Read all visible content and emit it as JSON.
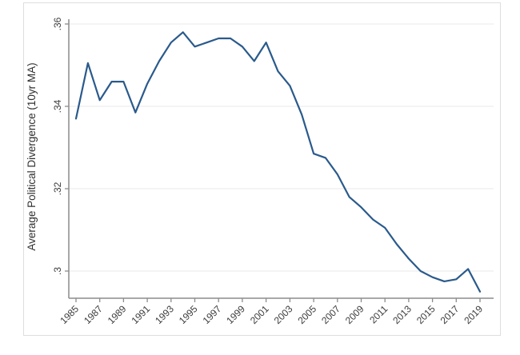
{
  "chart_data": {
    "type": "line",
    "title": "",
    "xlabel": "",
    "ylabel": "Average Political Divergence (10yr MA)",
    "x": [
      1985,
      1986,
      1987,
      1988,
      1989,
      1990,
      1991,
      1992,
      1993,
      1994,
      1995,
      1996,
      1997,
      1998,
      1999,
      2000,
      2001,
      2002,
      2003,
      2004,
      2005,
      2006,
      2007,
      2008,
      2009,
      2010,
      2011,
      2012,
      2013,
      2014,
      2015,
      2016,
      2017,
      2018,
      2019
    ],
    "series": [
      {
        "name": "Average Political Divergence (10yr MA)",
        "values": [
          0.337,
          0.3505,
          0.3415,
          0.346,
          0.346,
          0.3385,
          0.3455,
          0.351,
          0.3555,
          0.358,
          0.3545,
          0.3555,
          0.3565,
          0.3565,
          0.3545,
          0.351,
          0.3555,
          0.3485,
          0.345,
          0.338,
          0.3285,
          0.3275,
          0.3235,
          0.318,
          0.3155,
          0.3125,
          0.3105,
          0.3065,
          0.303,
          0.3,
          0.2985,
          0.2975,
          0.298,
          0.3005,
          0.295
        ]
      }
    ],
    "xticks": [
      1985,
      1987,
      1989,
      1991,
      1993,
      1995,
      1997,
      1999,
      2001,
      2003,
      2005,
      2007,
      2009,
      2011,
      2013,
      2015,
      2017,
      2019
    ],
    "yticks": [
      0.3,
      0.32,
      0.34,
      0.36
    ],
    "ytick_labels": [
      ".3",
      ".32",
      ".34",
      ".36"
    ],
    "xlim": [
      1984.4,
      2020.3
    ],
    "ylim": [
      0.2925,
      0.3615
    ],
    "grid": "horizontal",
    "legend": "none",
    "x_tick_rotation": -45,
    "y_tick_rotation": -90
  },
  "theme": {
    "line_color": "#2a5a8c",
    "axis_color": "#8c8c8c",
    "grid_color": "#ededed",
    "text_color": "#3d3d3d",
    "frame_border_color": "#dedede",
    "background": "#ffffff"
  }
}
